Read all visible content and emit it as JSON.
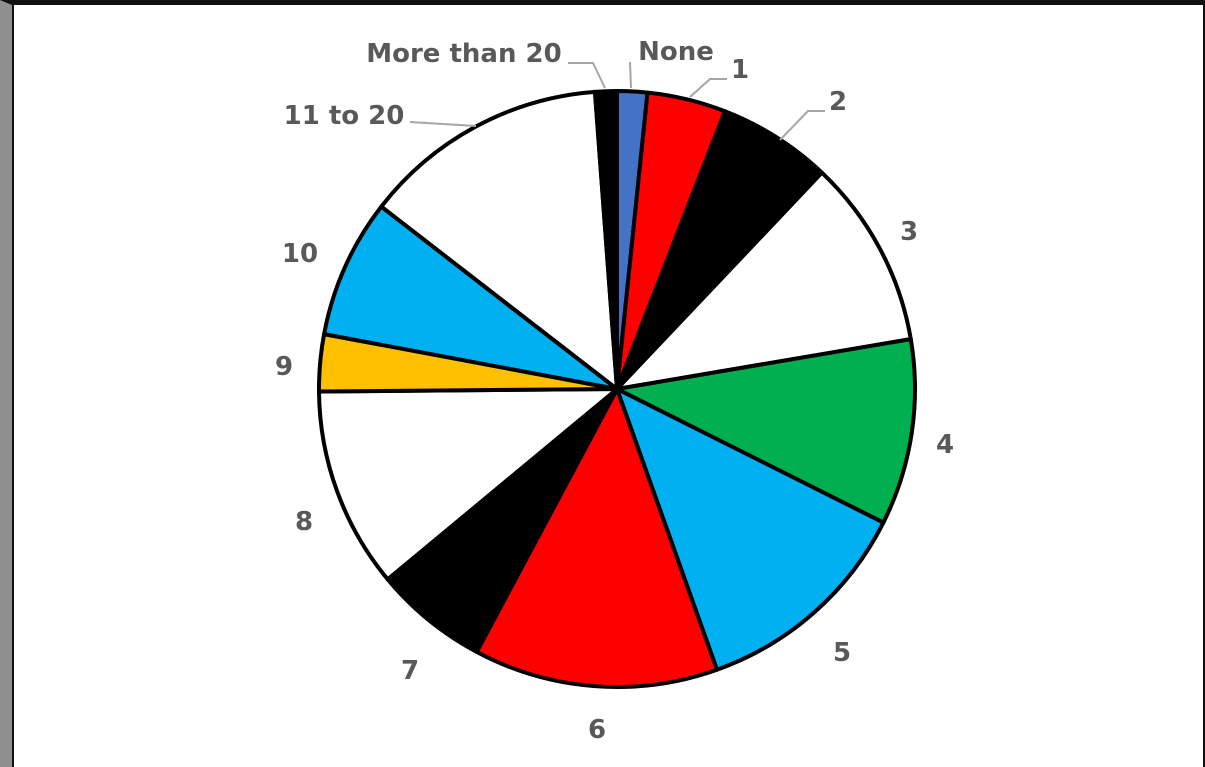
{
  "chart_data": {
    "type": "pie",
    "title": "",
    "slices": [
      {
        "label": "None",
        "value": 1.8,
        "color": "#4472C4"
      },
      {
        "label": "1",
        "value": 4.7,
        "color": "#FF0000"
      },
      {
        "label": "2",
        "value": 6.8,
        "color": "#000000"
      },
      {
        "label": "3",
        "value": 11.3,
        "color": "#FFFFFF"
      },
      {
        "label": "4",
        "value": 11.1,
        "color": "#00B050"
      },
      {
        "label": "5",
        "value": 13.4,
        "color": "#00B0F0"
      },
      {
        "label": "6",
        "value": 14.6,
        "color": "#FF0000"
      },
      {
        "label": "7",
        "value": 6.8,
        "color": "#000000"
      },
      {
        "label": "8",
        "value": 12.0,
        "color": "#FFFFFF"
      },
      {
        "label": "9",
        "value": 3.4,
        "color": "#FFC000"
      },
      {
        "label": "10",
        "value": 8.3,
        "color": "#00B0F0"
      },
      {
        "label": "11 to 20",
        "value": 14.7,
        "color": "#FFFFFF"
      },
      {
        "label": "More than 20",
        "value": 1.3,
        "color": "#000000"
      }
    ],
    "label_color": "#595959",
    "leader_line_color": "#A6A6A6",
    "outline_color": "#000000"
  }
}
